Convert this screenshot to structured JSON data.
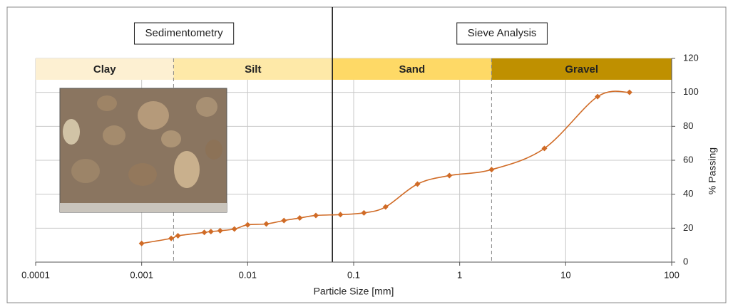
{
  "chart_data": {
    "type": "line",
    "x_label": "Particle Size [mm]",
    "y_label": "% Passing",
    "log_x": true,
    "xlim": [
      0.0001,
      100
    ],
    "xticks": [
      0.0001,
      0.001,
      0.01,
      0.1,
      1,
      10,
      100
    ],
    "ylim": [
      0,
      120
    ],
    "yticks": [
      0,
      20,
      40,
      60,
      80,
      100,
      120
    ],
    "grid": true,
    "sections": [
      {
        "label": "Sedimentometry"
      },
      {
        "label": "Sieve Analysis"
      }
    ],
    "zones": [
      {
        "label": "Clay",
        "range": [
          0.0001,
          0.002
        ],
        "color": "#fdf0d2"
      },
      {
        "label": "Silt",
        "range": [
          0.002,
          0.063
        ],
        "color": "#fee9a8"
      },
      {
        "label": "Sand",
        "range": [
          0.063,
          2
        ],
        "color": "#fed966"
      },
      {
        "label": "Gravel",
        "range": [
          2,
          100
        ],
        "color": "#bf9000"
      }
    ],
    "x": [
      0.001,
      0.0019,
      0.0022,
      0.0039,
      0.0045,
      0.0055,
      0.0075,
      0.01,
      0.015,
      0.022,
      0.031,
      0.044,
      0.075,
      0.125,
      0.2,
      0.4,
      0.8,
      2,
      6.3,
      20,
      40
    ],
    "series": [
      {
        "color": "#d06b26",
        "values": [
          11,
          14,
          15.5,
          17.5,
          18,
          18.5,
          19.5,
          22,
          22.5,
          24.5,
          26,
          27.5,
          28,
          29,
          32.5,
          46,
          51,
          54.5,
          67,
          97.5,
          100
        ]
      }
    ]
  }
}
